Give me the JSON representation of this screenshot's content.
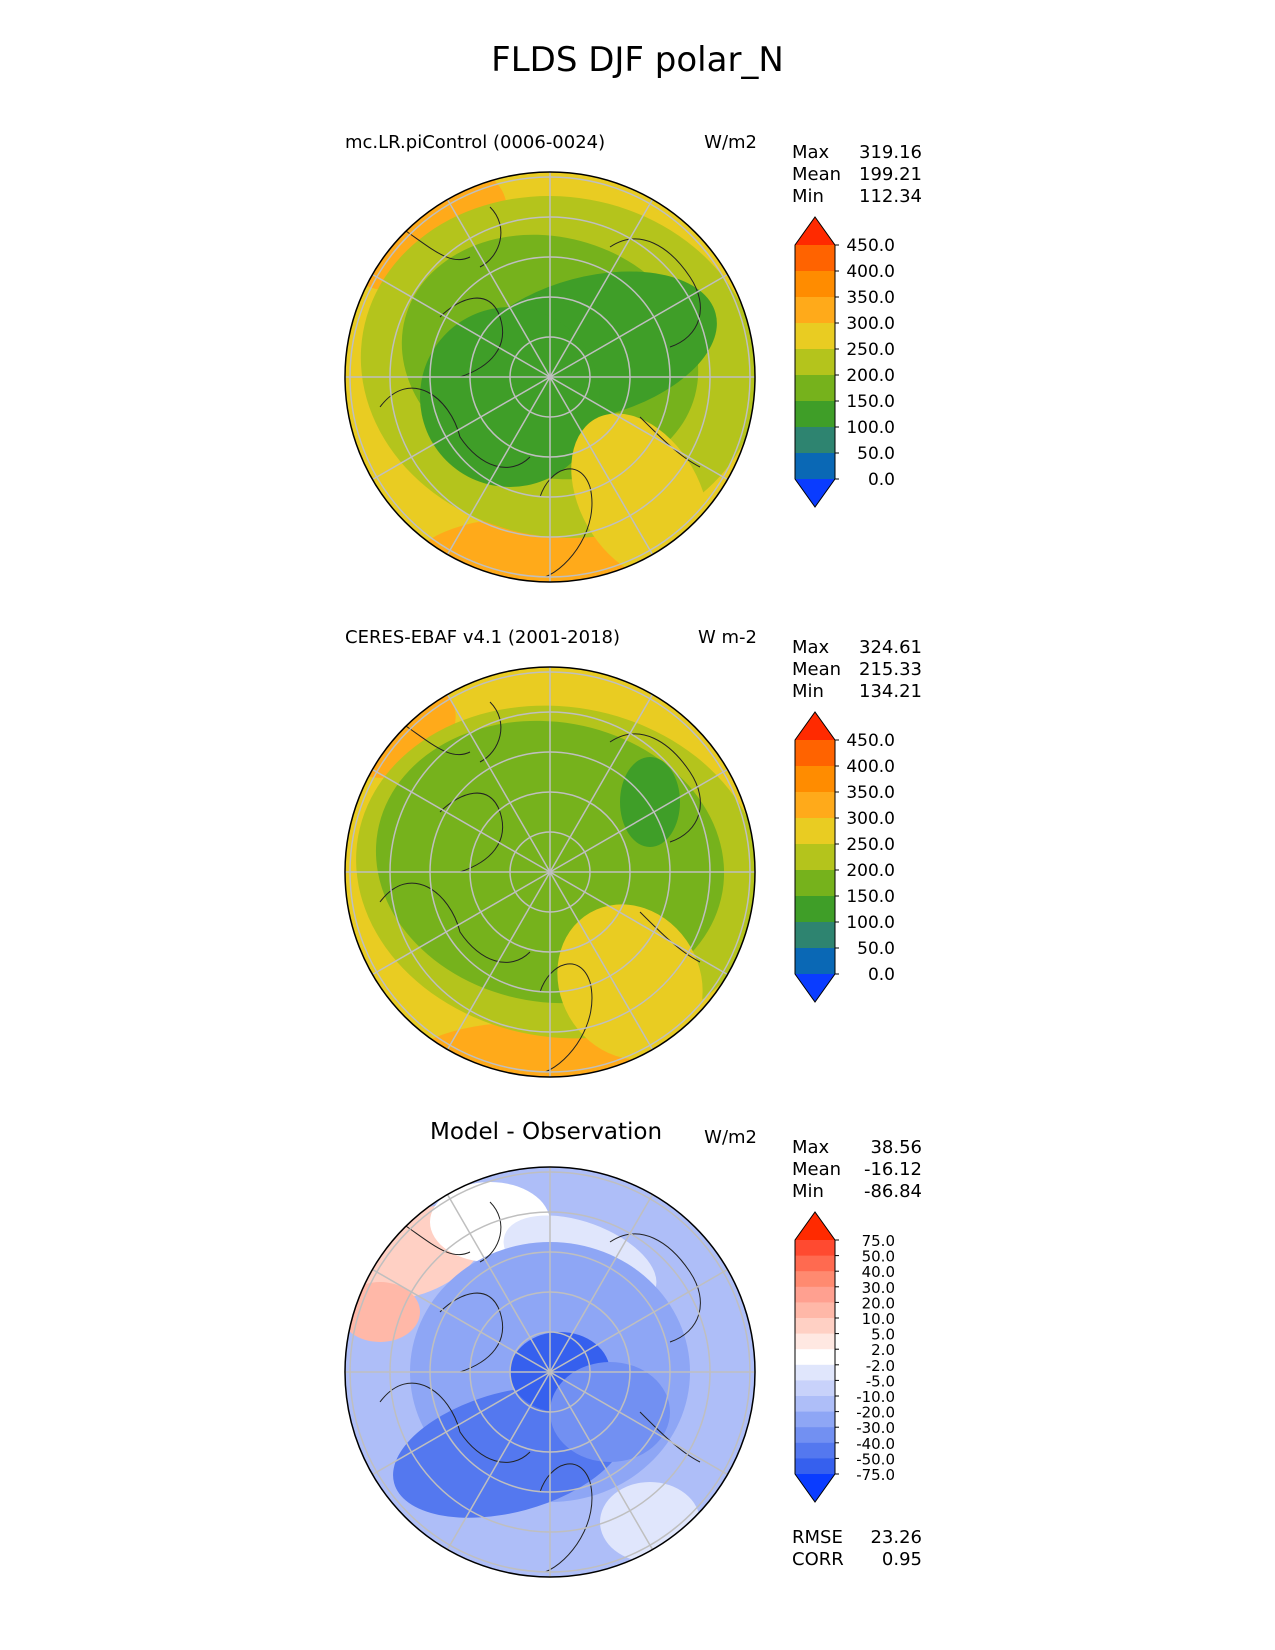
{
  "figure_title": "FLDS DJF polar_N",
  "chart_data": [
    {
      "type": "heatmap",
      "projection": "north polar stereographic",
      "title": "mc.LR.piControl (0006-0024)",
      "units": "W/m2",
      "stats": [
        {
          "label": "Max",
          "value": "319.16"
        },
        {
          "label": "Mean",
          "value": "199.21"
        },
        {
          "label": "Min",
          "value": "112.34"
        }
      ],
      "colorbar": {
        "levels": [
          "450.0",
          "400.0",
          "350.0",
          "300.0",
          "250.0",
          "200.0",
          "150.0",
          "100.0",
          "50.0",
          "0.0"
        ],
        "colors": [
          "#ff2a00",
          "#ff6300",
          "#ff8c00",
          "#ffaa1a",
          "#e9cc22",
          "#b4c41c",
          "#76b21c",
          "#3f9e28",
          "#2e8470",
          "#0a68b5",
          "#0a3cff"
        ]
      }
    },
    {
      "type": "heatmap",
      "projection": "north polar stereographic",
      "title": "CERES-EBAF v4.1 (2001-2018)",
      "units": "W m-2",
      "stats": [
        {
          "label": "Max",
          "value": "324.61"
        },
        {
          "label": "Mean",
          "value": "215.33"
        },
        {
          "label": "Min",
          "value": "134.21"
        }
      ],
      "colorbar": {
        "levels": [
          "450.0",
          "400.0",
          "350.0",
          "300.0",
          "250.0",
          "200.0",
          "150.0",
          "100.0",
          "50.0",
          "0.0"
        ],
        "colors": [
          "#ff2a00",
          "#ff6300",
          "#ff8c00",
          "#ffaa1a",
          "#e9cc22",
          "#b4c41c",
          "#76b21c",
          "#3f9e28",
          "#2e8470",
          "#0a68b5",
          "#0a3cff"
        ]
      }
    },
    {
      "type": "heatmap",
      "projection": "north polar stereographic",
      "title": "Model - Observation",
      "units": "W/m2",
      "stats": [
        {
          "label": "Max",
          "value": "38.56"
        },
        {
          "label": "Mean",
          "value": "-16.12"
        },
        {
          "label": "Min",
          "value": "-86.84"
        }
      ],
      "extra_stats": [
        {
          "label": "RMSE",
          "value": "23.26"
        },
        {
          "label": "CORR",
          "value": "0.95"
        }
      ],
      "colorbar": {
        "levels": [
          "75.0",
          "50.0",
          "40.0",
          "30.0",
          "20.0",
          "10.0",
          "5.0",
          "2.0",
          "-2.0",
          "-5.0",
          "-10.0",
          "-20.0",
          "-30.0",
          "-40.0",
          "-50.0",
          "-75.0"
        ],
        "colors": [
          "#ff2a00",
          "#ff4a30",
          "#ff6a50",
          "#ff8a70",
          "#ffa090",
          "#ffb8a8",
          "#ffd0c4",
          "#ffe8e2",
          "#ffffff",
          "#e0e6fc",
          "#c8d2fa",
          "#aebef8",
          "#8ea6f5",
          "#7290f2",
          "#5478ef",
          "#3660ee",
          "#0a3cff"
        ]
      }
    }
  ]
}
